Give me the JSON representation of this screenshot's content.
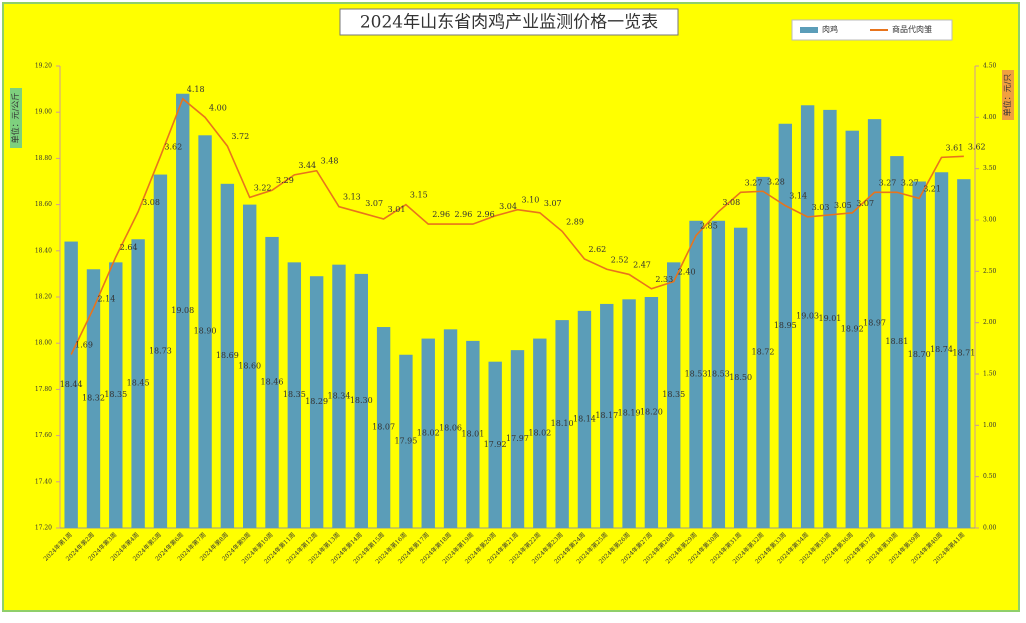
{
  "chart_data": {
    "type": "combo",
    "title": "2024年山东省肉鸡产业监测价格一览表",
    "y_label": "单位：元/公斤",
    "y2_label": "单位：元/只",
    "categories": [
      "2024年第1周",
      "2024年第2周",
      "2024年第3周",
      "2024年第4周",
      "2024年第5周",
      "2024年第6周",
      "2024年第7周",
      "2024年第8周",
      "2024年第9周",
      "2024年第10周",
      "2024年第11周",
      "2024年第12周",
      "2024年第13周",
      "2024年第14周",
      "2024年第15周",
      "2024年第16周",
      "2024年第17周",
      "2024年第18周",
      "2024年第19周",
      "2024年第20周",
      "2024年第21周",
      "2024年第22周",
      "2024年第23周",
      "2024年第24周",
      "2024年第25周",
      "2024年第26周",
      "2024年第27周",
      "2024年第28周",
      "2024年第29周",
      "2024年第30周",
      "2024年第31周",
      "2024年第32周",
      "2024年第33周",
      "2024年第34周",
      "2024年第35周",
      "2024年第36周",
      "2024年第37周",
      "2024年第38周",
      "2024年第39周",
      "2024年第40周",
      "2024年第41周"
    ],
    "series": [
      {
        "name": "肉鸡",
        "type": "bar",
        "axis": "y",
        "color": "#5b9db8",
        "values": [
          18.44,
          18.32,
          18.35,
          18.45,
          18.73,
          19.08,
          18.9,
          18.69,
          18.6,
          18.46,
          18.35,
          18.29,
          18.34,
          18.3,
          18.07,
          17.95,
          18.02,
          18.06,
          18.01,
          17.92,
          17.97,
          18.02,
          18.1,
          18.14,
          18.17,
          18.19,
          18.2,
          18.35,
          18.53,
          18.53,
          18.5,
          18.72,
          18.95,
          19.03,
          19.01,
          18.92,
          18.97,
          18.81,
          18.7,
          18.74,
          18.71
        ],
        "value_labels": [
          "18.44",
          "18.32",
          "18.35",
          "18.45",
          "18.73",
          "19.08",
          "18.90",
          "18.69",
          "18.60",
          "18.46",
          "18.35",
          "18.29",
          "18.34",
          "18.30",
          "18.07",
          "17.95",
          "18.02",
          "18.06",
          "18.01",
          "17.92",
          "17.97",
          "18.02",
          "18.10",
          "18.14",
          "18.17",
          "18.19",
          "18.20",
          "18.35",
          "18.53",
          "18.53",
          "18.50",
          "18.72",
          "18.95",
          "19.03",
          "19.01",
          "18.92",
          "18.97",
          "18.81",
          "18.70",
          "18.74",
          "18.71"
        ]
      },
      {
        "name": "商品代肉雏",
        "type": "line",
        "axis": "y2",
        "color": "#e8741c",
        "values": [
          1.69,
          2.14,
          2.64,
          3.08,
          3.62,
          4.18,
          4.0,
          3.72,
          3.22,
          3.29,
          3.44,
          3.48,
          3.13,
          3.07,
          3.01,
          3.15,
          2.96,
          2.96,
          2.96,
          3.04,
          3.1,
          3.07,
          2.89,
          2.62,
          2.52,
          2.47,
          2.33,
          2.4,
          2.85,
          3.08,
          3.27,
          3.28,
          3.14,
          3.03,
          3.05,
          3.07,
          3.27,
          3.27,
          3.21,
          3.61,
          3.62
        ],
        "value_labels": [
          "1.69",
          "2.14",
          "2.64",
          "3.08",
          "3.62",
          "4.18",
          "4.00",
          "3.72",
          "3.22",
          "3.29",
          "3.44",
          "3.48",
          "3.13",
          "3.07",
          "3.01",
          "3.15",
          "2.96",
          "2.96",
          "2.96",
          "3.04",
          "3.10",
          "3.07",
          "2.89",
          "2.62",
          "2.52",
          "2.47",
          "2.33",
          "2.40",
          "2.85",
          "3.08",
          "3.27",
          "3.28",
          "3.14",
          "3.03",
          "3.05",
          "3.07",
          "3.27",
          "3.27",
          "3.21",
          "3.61",
          "3.62"
        ]
      }
    ],
    "ylim": [
      17.2,
      19.2
    ],
    "yticks": [
      {
        "value": 17.2,
        "label": "17.20"
      },
      {
        "value": 17.4,
        "label": "17.40"
      },
      {
        "value": 17.6,
        "label": "17.60"
      },
      {
        "value": 17.8,
        "label": "17.80"
      },
      {
        "value": 18,
        "label": "18.00"
      },
      {
        "value": 18.2,
        "label": "18.20"
      },
      {
        "value": 18.4,
        "label": "18.40"
      },
      {
        "value": 18.6,
        "label": "18.60"
      },
      {
        "value": 18.8,
        "label": "18.80"
      },
      {
        "value": 19,
        "label": "19.00"
      },
      {
        "value": 19.2,
        "label": "19.20"
      }
    ],
    "y2lim": [
      0,
      4.5
    ],
    "y2ticks": [
      {
        "value": 0,
        "label": "0.00"
      },
      {
        "value": 0.5,
        "label": "0.50"
      },
      {
        "value": 1,
        "label": "1.00"
      },
      {
        "value": 1.5,
        "label": "1.50"
      },
      {
        "value": 2,
        "label": "2.00"
      },
      {
        "value": 2.5,
        "label": "2.50"
      },
      {
        "value": 3,
        "label": "3.00"
      },
      {
        "value": 3.5,
        "label": "3.50"
      },
      {
        "value": 4,
        "label": "4.00"
      },
      {
        "value": 4.5,
        "label": "4.50"
      }
    ],
    "legend": "top-right"
  }
}
